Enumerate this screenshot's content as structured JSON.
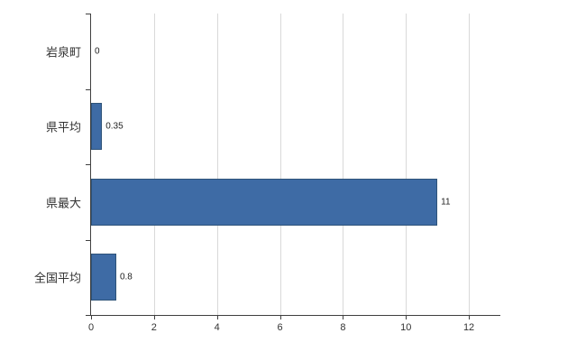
{
  "chart_data": {
    "type": "bar",
    "orientation": "horizontal",
    "title": "",
    "xlabel": "",
    "ylabel": "",
    "categories": [
      "岩泉町",
      "県平均",
      "県最大",
      "全国平均"
    ],
    "values": [
      0,
      0.35,
      11,
      0.8
    ],
    "value_labels": [
      "0",
      "0.35",
      "11",
      "0.8"
    ],
    "xlim": [
      0,
      13
    ],
    "xticks": [
      0,
      2,
      4,
      6,
      8,
      10,
      12
    ],
    "grid": "vertical",
    "legend": "none"
  },
  "colors": {
    "bar_fill": "#3E6BA5",
    "bar_border": "#2E5379",
    "gridline": "#d9d9d9",
    "axis": "#404040",
    "background": "#ffffff",
    "text": "#333333"
  }
}
